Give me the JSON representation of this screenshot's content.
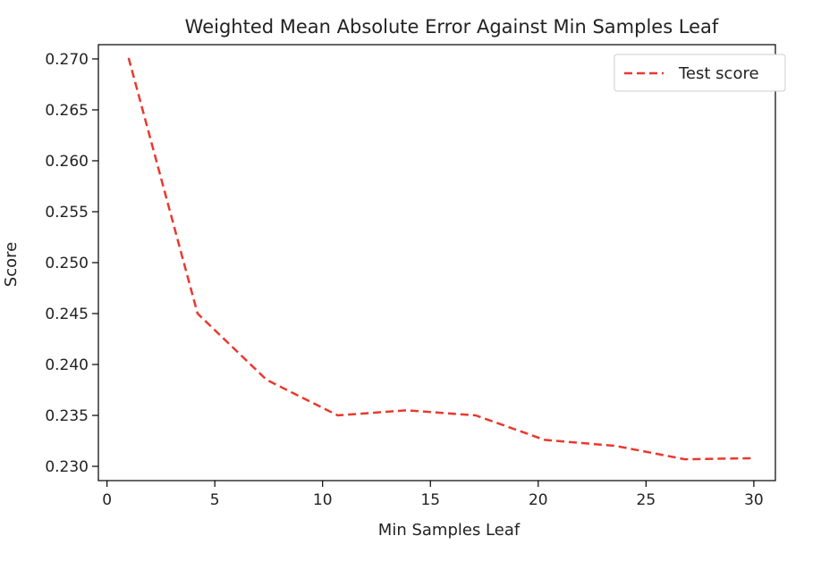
{
  "chart_data": {
    "type": "line",
    "title": "Weighted Mean Absolute Error Against Min Samples Leaf",
    "xlabel": "Min Samples Leaf",
    "ylabel": "Score",
    "xlim": [
      -0.4,
      31
    ],
    "ylim": [
      0.2286,
      0.2714
    ],
    "xticks": [
      0,
      5,
      10,
      15,
      20,
      25,
      30
    ],
    "yticks": [
      0.23,
      0.235,
      0.24,
      0.245,
      0.25,
      0.255,
      0.26,
      0.265,
      0.27
    ],
    "xtick_labels": [
      "0",
      "5",
      "10",
      "15",
      "20",
      "25",
      "30"
    ],
    "ytick_labels": [
      "0.230",
      "0.235",
      "0.240",
      "0.245",
      "0.250",
      "0.255",
      "0.260",
      "0.265",
      "0.270"
    ],
    "grid": false,
    "legend_position": "top-right",
    "series": [
      {
        "name": "Test score",
        "color": "#e8392e",
        "line_style": "dashed",
        "x": [
          1,
          4.2,
          7.4,
          10.7,
          13.9,
          17.1,
          20.3,
          23.6,
          26.8,
          30
        ],
        "y": [
          0.2701,
          0.245,
          0.2385,
          0.235,
          0.2355,
          0.235,
          0.2326,
          0.232,
          0.2307,
          0.2308
        ]
      }
    ]
  }
}
